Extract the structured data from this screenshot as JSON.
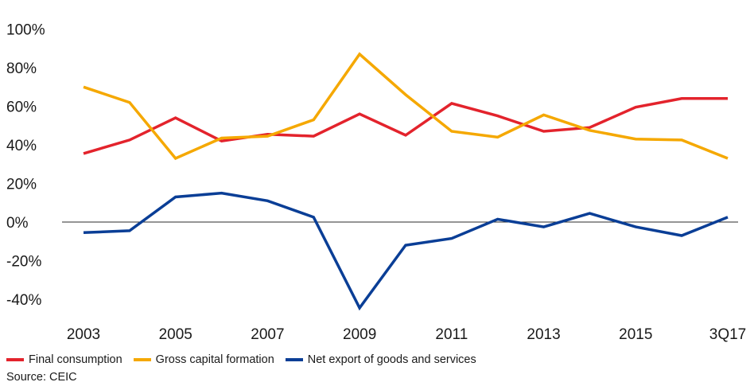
{
  "chart_data": {
    "type": "line",
    "categories": [
      "2003",
      "2004",
      "2005",
      "2006",
      "2007",
      "2008",
      "2009",
      "2010",
      "2011",
      "2012",
      "2013",
      "2014",
      "2015",
      "2016",
      "3Q17"
    ],
    "x_tick_labels": [
      "2003",
      "2005",
      "2007",
      "2009",
      "2011",
      "2013",
      "2015",
      "3Q17"
    ],
    "y_tick_labels": [
      "100%",
      "80%",
      "60%",
      "40%",
      "20%",
      "0%",
      "-20%",
      "-40%"
    ],
    "ylim": [
      -45,
      100
    ],
    "y_ticks": [
      100,
      80,
      60,
      40,
      20,
      0,
      -20,
      -40
    ],
    "zero_line": true,
    "grid": false,
    "legend_position": "bottom-left",
    "series": [
      {
        "name": "Final consumption",
        "color": "#e3232c",
        "values": [
          35.5,
          42.5,
          54,
          42,
          45.5,
          44.5,
          56,
          45,
          61.5,
          55,
          47,
          49,
          59.5,
          64,
          64
        ]
      },
      {
        "name": "Gross capital formation",
        "color": "#f5a800",
        "values": [
          70,
          62,
          33,
          43.5,
          44.5,
          53,
          87,
          66,
          47,
          44,
          55.5,
          47.5,
          43,
          42.5,
          33
        ]
      },
      {
        "name": "Net export of goods and services",
        "color": "#0a3e96",
        "values": [
          -5.5,
          -4.5,
          13,
          15,
          11,
          2.5,
          -44.5,
          -12,
          -8.5,
          1.5,
          -2.5,
          4.5,
          -2.5,
          -7,
          2.5
        ]
      }
    ]
  },
  "source": "Source: CEIC"
}
